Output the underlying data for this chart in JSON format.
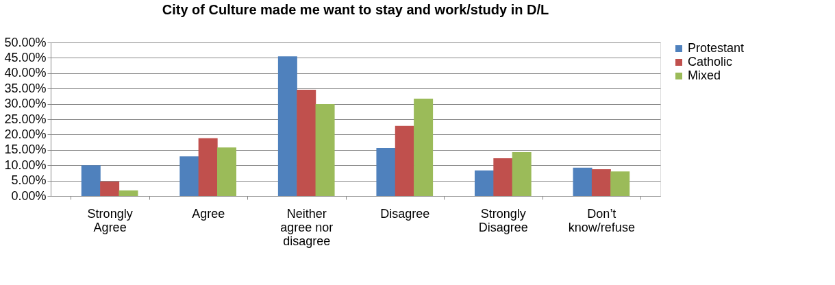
{
  "chart_data": {
    "type": "bar",
    "title": "City of Culture made me want to stay and work/study in D/L",
    "categories": [
      "Strongly Agree",
      "Agree",
      "Neither agree nor disagree",
      "Disagree",
      "Strongly Disagree",
      "Don’t know/refuse"
    ],
    "series": [
      {
        "name": "Protestant",
        "color": "#4f81bd",
        "values": [
          10.0,
          12.9,
          45.5,
          15.6,
          8.3,
          9.2
        ]
      },
      {
        "name": "Catholic",
        "color": "#c0504d",
        "values": [
          4.7,
          18.8,
          34.6,
          22.8,
          12.3,
          8.7
        ]
      },
      {
        "name": "Mixed",
        "color": "#9bbb59",
        "values": [
          1.8,
          15.8,
          29.9,
          31.7,
          14.3,
          8.0
        ]
      }
    ],
    "ylim": [
      0,
      50
    ],
    "yticks": [
      {
        "value": 0,
        "label": "0.00%"
      },
      {
        "value": 5,
        "label": "5.00%"
      },
      {
        "value": 10,
        "label": "10.00%"
      },
      {
        "value": 15,
        "label": "15.00%"
      },
      {
        "value": 20,
        "label": "20.00%"
      },
      {
        "value": 25,
        "label": "25.00%"
      },
      {
        "value": 30,
        "label": "30.00%"
      },
      {
        "value": 35,
        "label": "35.00%"
      },
      {
        "value": 40,
        "label": "40.00%"
      },
      {
        "value": 45,
        "label": "45.00%"
      },
      {
        "value": 50,
        "label": "50.00%"
      }
    ],
    "grid": "y",
    "legend": "right"
  }
}
